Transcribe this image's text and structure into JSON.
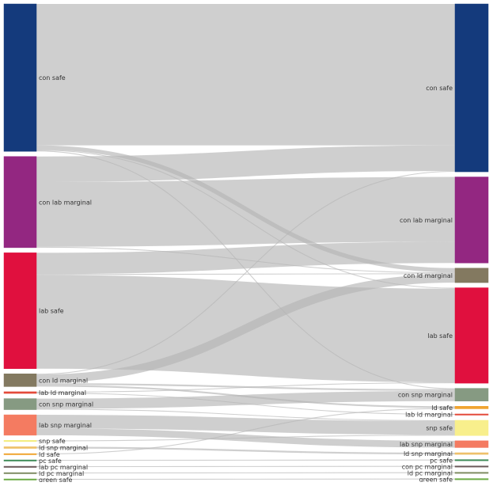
{
  "sankey": {
    "sources": [
      {
        "id": "s_con_safe",
        "label": "con safe",
        "color": "#143a7c"
      },
      {
        "id": "s_con_lab_marginal",
        "label": "con lab marginal",
        "color": "#932781"
      },
      {
        "id": "s_lab_safe",
        "label": "lab safe",
        "color": "#e0103e"
      },
      {
        "id": "s_con_ld_marginal",
        "label": "con ld marginal",
        "color": "#837960"
      },
      {
        "id": "s_lab_ld_marginal",
        "label": "lab ld marginal",
        "color": "#e34a3a"
      },
      {
        "id": "s_con_snp_marginal",
        "label": "con snp marginal",
        "color": "#869a82"
      },
      {
        "id": "s_lab_snp_marginal",
        "label": "lab snp marginal",
        "color": "#f47b61"
      },
      {
        "id": "s_snp_safe",
        "label": "snp safe",
        "color": "#f3ec7a"
      },
      {
        "id": "s_ld_snp_marginal",
        "label": "ld snp marginal",
        "color": "#eec16a"
      },
      {
        "id": "s_ld_safe",
        "label": "ld safe",
        "color": "#f0a430"
      },
      {
        "id": "s_pc_safe",
        "label": "pc safe",
        "color": "#3f8a57"
      },
      {
        "id": "s_lab_pc_marginal",
        "label": "lab pc marginal",
        "color": "#6b5a5a"
      },
      {
        "id": "s_ld_pc_marginal",
        "label": "ld pc marginal",
        "color": "#7f8c63"
      },
      {
        "id": "s_green_safe",
        "label": "green safe",
        "color": "#6cab45"
      }
    ],
    "targets": [
      {
        "id": "t_con_safe",
        "label": "con safe",
        "color": "#143a7c"
      },
      {
        "id": "t_con_lab_marginal",
        "label": "con lab marginal",
        "color": "#932781"
      },
      {
        "id": "t_con_ld_marginal",
        "label": "con ld marginal",
        "color": "#837960"
      },
      {
        "id": "t_lab_safe",
        "label": "lab safe",
        "color": "#e0103e"
      },
      {
        "id": "t_con_snp_marginal",
        "label": "con snp marginal",
        "color": "#869a82"
      },
      {
        "id": "t_ld_safe",
        "label": "ld safe",
        "color": "#f0a430"
      },
      {
        "id": "t_lab_ld_marginal",
        "label": "lab ld marginal",
        "color": "#e34a3a"
      },
      {
        "id": "t_snp_safe",
        "label": "snp safe",
        "color": "#f8ef8c"
      },
      {
        "id": "t_lab_snp_marginal",
        "label": "lab snp marginal",
        "color": "#f47b61"
      },
      {
        "id": "t_ld_snp_marginal",
        "label": "ld snp marginal",
        "color": "#eec16a"
      },
      {
        "id": "t_pc_safe",
        "label": "pc safe",
        "color": "#3f8a57"
      },
      {
        "id": "t_con_pc_marginal",
        "label": "con pc marginal",
        "color": "#6b5a5a"
      },
      {
        "id": "t_ld_pc_marginal",
        "label": "ld pc marginal",
        "color": "#7f8c63"
      },
      {
        "id": "t_green_safe",
        "label": "green safe",
        "color": "#6cab45"
      }
    ],
    "flows": [
      {
        "from": "s_con_safe",
        "to": "t_con_safe",
        "value": 166
      },
      {
        "from": "s_con_safe",
        "to": "t_con_ld_marginal",
        "value": 5
      },
      {
        "from": "s_con_safe",
        "to": "t_con_snp_marginal",
        "value": 1
      },
      {
        "from": "s_con_safe",
        "to": "t_lab_safe",
        "value": 1
      },
      {
        "from": "s_con_lab_marginal",
        "to": "t_con_safe",
        "value": 30
      },
      {
        "from": "s_con_lab_marginal",
        "to": "t_con_lab_marginal",
        "value": 76
      },
      {
        "from": "s_con_lab_marginal",
        "to": "t_con_ld_marginal",
        "value": 1
      },
      {
        "from": "s_lab_safe",
        "to": "t_con_lab_marginal",
        "value": 25
      },
      {
        "from": "s_lab_safe",
        "to": "t_con_ld_marginal",
        "value": 1
      },
      {
        "from": "s_lab_safe",
        "to": "t_lab_safe",
        "value": 110
      },
      {
        "from": "s_con_ld_marginal",
        "to": "t_con_safe",
        "value": 1
      },
      {
        "from": "s_con_ld_marginal",
        "to": "t_con_ld_marginal",
        "value": 10
      },
      {
        "from": "s_con_ld_marginal",
        "to": "t_con_snp_marginal",
        "value": 2
      },
      {
        "from": "s_con_ld_marginal",
        "to": "t_ld_safe",
        "value": 2
      },
      {
        "from": "s_lab_ld_marginal",
        "to": "t_lab_ld_marginal",
        "value": 1
      },
      {
        "from": "s_lab_ld_marginal",
        "to": "t_lab_safe",
        "value": 1
      },
      {
        "from": "s_con_snp_marginal",
        "to": "t_con_snp_marginal",
        "value": 12
      },
      {
        "from": "s_con_snp_marginal",
        "to": "t_snp_safe",
        "value": 1
      },
      {
        "from": "s_lab_snp_marginal",
        "to": "t_snp_safe",
        "value": 16
      },
      {
        "from": "s_lab_snp_marginal",
        "to": "t_lab_snp_marginal",
        "value": 8
      },
      {
        "from": "s_snp_safe",
        "to": "t_snp_safe",
        "value": 1
      },
      {
        "from": "s_ld_snp_marginal",
        "to": "t_ld_snp_marginal",
        "value": 2
      },
      {
        "from": "s_ld_safe",
        "to": "t_ld_safe",
        "value": 1
      },
      {
        "from": "s_pc_safe",
        "to": "t_pc_safe",
        "value": 1
      },
      {
        "from": "s_lab_pc_marginal",
        "to": "t_con_pc_marginal",
        "value": 1
      },
      {
        "from": "s_ld_pc_marginal",
        "to": "t_ld_pc_marginal",
        "value": 1
      },
      {
        "from": "s_green_safe",
        "to": "t_green_safe",
        "value": 1
      }
    ]
  }
}
